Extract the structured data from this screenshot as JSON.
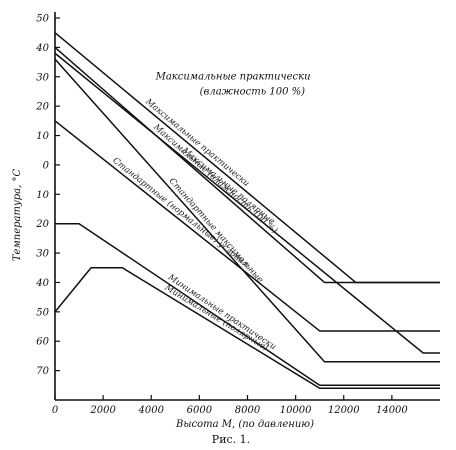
{
  "caption": "Рис. 1.",
  "chart_data": {
    "type": "line",
    "title": "",
    "xlabel": "Высота М, (по давлению)",
    "ylabel": "Температура, °С",
    "xlim": [
      0,
      16000
    ],
    "ylim": [
      -80,
      50
    ],
    "x_ticks": [
      0,
      2000,
      4000,
      6000,
      8000,
      10000,
      12000,
      14000
    ],
    "x_tick_labels": [
      "0",
      "2000",
      "4000",
      "6000",
      "8000",
      "10000",
      "12000",
      "14000"
    ],
    "y_ticks": [
      50,
      40,
      30,
      20,
      10,
      0,
      -10,
      -20,
      -30,
      -40,
      -50,
      -60,
      -70
    ],
    "y_tick_labels": [
      "50",
      "40",
      "30",
      "20",
      "10",
      "0",
      "10",
      "20",
      "30",
      "40",
      "50",
      "60",
      "70"
    ],
    "annotations": [
      {
        "text": "Максимальные практически",
        "x": 7400,
        "y": 29
      },
      {
        "text": "(влажность 100 %)",
        "x": 8200,
        "y": 24
      }
    ],
    "series": [
      {
        "label": "Максимальные практически",
        "x": [
          0,
          12500,
          16000
        ],
        "y": [
          45,
          -40,
          -40
        ]
      },
      {
        "label": "Максимальные (влажность 100 %)",
        "x": [
          0,
          11200,
          16000
        ],
        "y": [
          40,
          -40,
          -40
        ]
      },
      {
        "label": "Максимальные полярные",
        "x": [
          0,
          15300,
          16000
        ],
        "y": [
          38,
          -64,
          -64
        ]
      },
      {
        "label": "Стандартные максимальные",
        "x": [
          0,
          11200,
          16000
        ],
        "y": [
          36,
          -67,
          -67
        ]
      },
      {
        "label": "Стандартные (нормальные) условия",
        "x": [
          0,
          11000,
          16000
        ],
        "y": [
          15,
          -56.5,
          -56.5
        ]
      },
      {
        "label": "Минимальные практически",
        "x": [
          0,
          1000,
          11000,
          16000
        ],
        "y": [
          -20,
          -20,
          -75,
          -75
        ]
      },
      {
        "label": "Минимальные (полярные)",
        "x": [
          0,
          1500,
          2800,
          11000,
          16000
        ],
        "y": [
          -50,
          -35,
          -35,
          -76,
          -76
        ]
      }
    ]
  }
}
